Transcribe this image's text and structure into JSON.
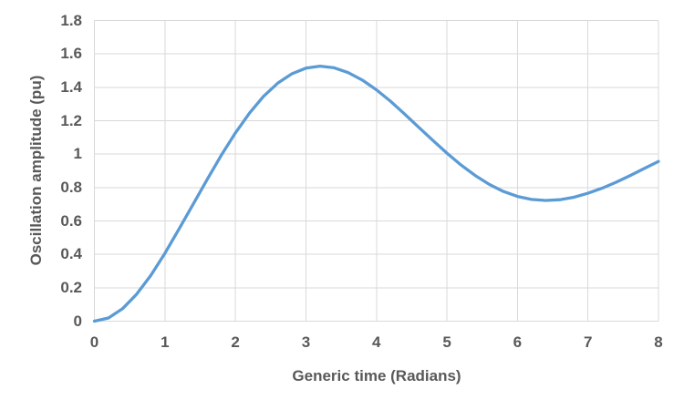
{
  "chart_data": {
    "type": "line",
    "title": "",
    "xlabel": "Generic time (Radians)",
    "ylabel": "Oscillation amplitude (pu)",
    "xlim": [
      0,
      8
    ],
    "ylim": [
      0,
      1.8
    ],
    "xticks": {
      "values": [
        0,
        1,
        2,
        3,
        4,
        5,
        6,
        7,
        8
      ],
      "labels": [
        "0",
        "1",
        "2",
        "3",
        "4",
        "5",
        "6",
        "7",
        "8"
      ]
    },
    "yticks": {
      "values": [
        0,
        0.2,
        0.4,
        0.6,
        0.8,
        1,
        1.2,
        1.4,
        1.6,
        1.8
      ],
      "labels": [
        "0",
        "0.2",
        "0.4",
        "0.6",
        "0.8",
        "1",
        "1.2",
        "1.4",
        "1.6",
        "1.8"
      ]
    },
    "grid": true,
    "legend": "none",
    "colors": {
      "line": "#5B9BD5",
      "grid": "#D9D9D9",
      "text": "#595959"
    },
    "series": [
      {
        "x": [
          0,
          0.2,
          0.4,
          0.6,
          0.8,
          1.0,
          1.2,
          1.4,
          1.6,
          1.8,
          2.0,
          2.2,
          2.4,
          2.6,
          2.8,
          3.0,
          3.2,
          3.4,
          3.6,
          3.8,
          4.0,
          4.2,
          4.4,
          4.6,
          4.8,
          5.0,
          5.2,
          5.4,
          5.6,
          5.8,
          6.0,
          6.2,
          6.4,
          6.6,
          6.8,
          7.0,
          7.2,
          7.4,
          7.6,
          7.8,
          8.0
        ],
        "y": [
          0,
          0.019,
          0.075,
          0.162,
          0.273,
          0.406,
          0.552,
          0.699,
          0.849,
          0.994,
          1.127,
          1.246,
          1.346,
          1.425,
          1.481,
          1.515,
          1.527,
          1.517,
          1.488,
          1.443,
          1.385,
          1.317,
          1.24,
          1.161,
          1.082,
          1.006,
          0.935,
          0.872,
          0.819,
          0.777,
          0.747,
          0.729,
          0.723,
          0.727,
          0.742,
          0.766,
          0.796,
          0.832,
          0.872,
          0.914,
          0.956
        ]
      }
    ]
  }
}
